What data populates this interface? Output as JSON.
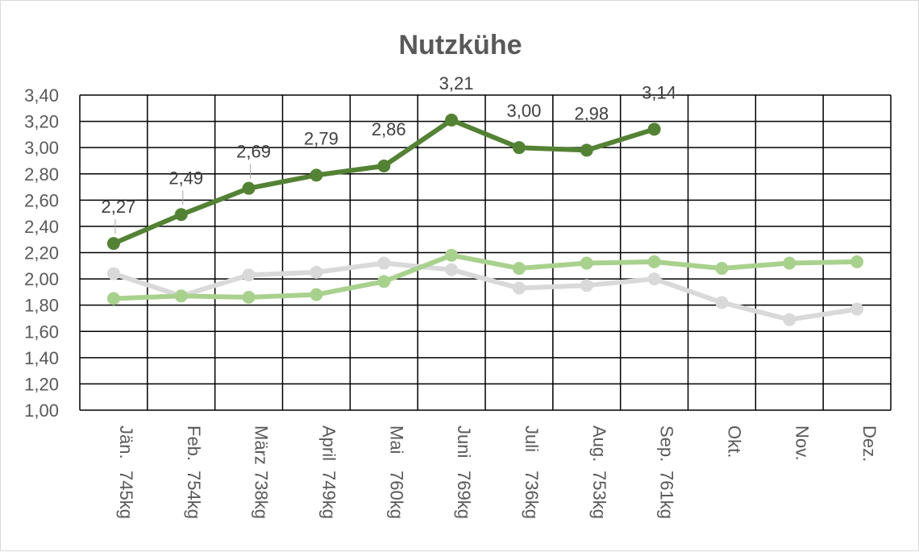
{
  "chart_data": {
    "type": "line",
    "title": "Nutzkühe",
    "xlabel": "",
    "ylabel": "",
    "ylim": [
      1.0,
      3.4
    ],
    "ytick_step": 0.2,
    "grid": true,
    "categories": [
      [
        "Jän.",
        "745kg"
      ],
      [
        "Feb.",
        "754kg"
      ],
      [
        "März",
        "738kg"
      ],
      [
        "April",
        "749kg"
      ],
      [
        "Mai",
        "760kg"
      ],
      [
        "Juni",
        "769kg"
      ],
      [
        "Juli",
        "736kg"
      ],
      [
        "Aug.",
        "753kg"
      ],
      [
        "Sep.",
        "761kg"
      ],
      [
        "Okt.",
        ""
      ],
      [
        "Nov.",
        ""
      ],
      [
        "Dez.",
        ""
      ]
    ],
    "series": [
      {
        "color": "#d9d9d9",
        "values": [
          2.04,
          1.87,
          2.03,
          2.05,
          2.12,
          2.07,
          1.93,
          1.95,
          2.0,
          1.82,
          1.69,
          1.77
        ],
        "show_labels": false
      },
      {
        "color": "#a9d18e",
        "values": [
          1.85,
          1.87,
          1.86,
          1.88,
          1.98,
          2.18,
          2.08,
          2.12,
          2.13,
          2.08,
          2.12,
          2.13
        ],
        "show_labels": false
      },
      {
        "color": "#548235",
        "values": [
          2.27,
          2.49,
          2.69,
          2.79,
          2.86,
          3.21,
          3.0,
          2.98,
          3.14,
          null,
          null,
          null
        ],
        "labels": [
          "2,27",
          "2,49",
          "2,69",
          "2,79",
          "2,86",
          "3,21",
          "3,00",
          "2,98",
          "3,14",
          "",
          "",
          ""
        ],
        "show_labels": true
      }
    ]
  }
}
